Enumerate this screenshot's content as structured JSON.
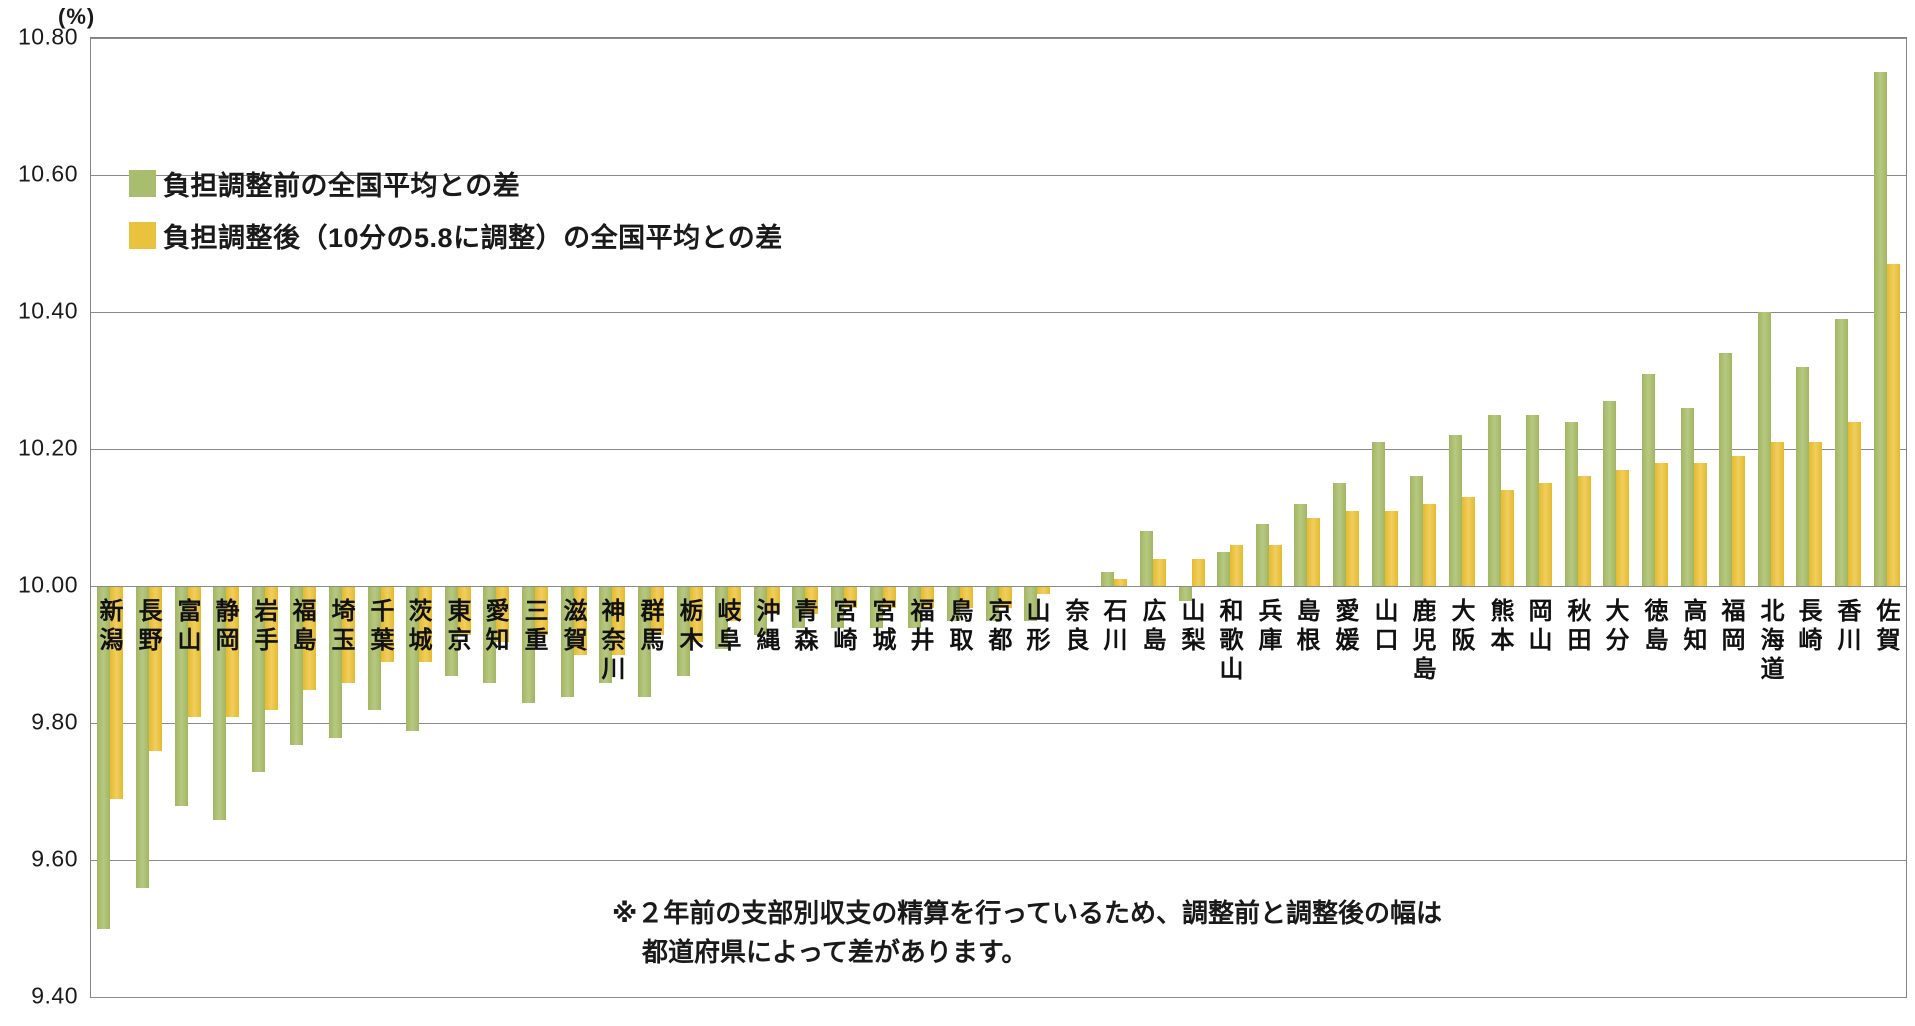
{
  "unit_label": "(%)",
  "legend": {
    "before_label": "負担調整前の全国平均との差",
    "after_label": "負担調整後（10分の5.8に調整）の全国平均との差"
  },
  "note": {
    "line1": "※２年前の支部別収支の精算を行っているため、調整前と調整後の幅は",
    "line2": "都道府県によって差があります。"
  },
  "colors": {
    "before_bar": "#A9BD6E",
    "after_bar": "#E9C33E",
    "grid": "#8A8A8A",
    "text": "#1A1A1A"
  },
  "chart_data": {
    "type": "bar",
    "title": "",
    "ylabel": "(%)",
    "xlabel": "",
    "baseline": 10.0,
    "ylim": [
      9.4,
      10.8
    ],
    "yticks": [
      "10.80",
      "10.60",
      "10.40",
      "10.20",
      "10.00",
      "9.80",
      "9.60",
      "9.40"
    ],
    "grid": true,
    "legend_position": "top-left-inside",
    "categories": [
      "新潟",
      "長野",
      "富山",
      "静岡",
      "岩手",
      "福島",
      "埼玉",
      "千葉",
      "茨城",
      "東京",
      "愛知",
      "三重",
      "滋賀",
      "神奈川",
      "群馬",
      "栃木",
      "岐阜",
      "沖縄",
      "青森",
      "宮崎",
      "宮城",
      "福井",
      "鳥取",
      "京都",
      "山形",
      "奈良",
      "石川",
      "広島",
      "山梨",
      "和歌山",
      "兵庫",
      "島根",
      "愛媛",
      "山口",
      "鹿児島",
      "大阪",
      "熊本",
      "岡山",
      "秋田",
      "大分",
      "徳島",
      "高知",
      "福岡",
      "北海道",
      "長崎",
      "香川",
      "佐賀"
    ],
    "series": [
      {
        "name": "負担調整前の全国平均との差",
        "color": "#A9BD6E",
        "values": [
          9.5,
          9.56,
          9.68,
          9.66,
          9.73,
          9.77,
          9.78,
          9.82,
          9.79,
          9.87,
          9.86,
          9.83,
          9.84,
          9.86,
          9.84,
          9.87,
          9.91,
          9.93,
          9.94,
          9.94,
          9.94,
          9.94,
          9.95,
          9.95,
          9.95,
          10.0,
          10.02,
          10.08,
          9.98,
          10.05,
          10.09,
          10.12,
          10.15,
          10.21,
          10.16,
          10.22,
          10.25,
          10.25,
          10.24,
          10.27,
          10.31,
          10.26,
          10.34,
          10.4,
          10.32,
          10.39,
          10.75
        ]
      },
      {
        "name": "負担調整後（10分の5.8に調整）の全国平均との差",
        "color": "#E9C33E",
        "values": [
          9.69,
          9.76,
          9.81,
          9.81,
          9.82,
          9.85,
          9.86,
          9.89,
          9.89,
          9.93,
          9.92,
          9.93,
          9.9,
          9.9,
          9.93,
          9.92,
          9.95,
          9.96,
          9.96,
          9.97,
          9.97,
          9.97,
          9.97,
          9.97,
          9.99,
          10.0,
          10.01,
          10.04,
          10.04,
          10.06,
          10.06,
          10.1,
          10.11,
          10.11,
          10.12,
          10.13,
          10.14,
          10.15,
          10.16,
          10.17,
          10.18,
          10.18,
          10.19,
          10.21,
          10.21,
          10.24,
          10.47
        ]
      }
    ]
  }
}
